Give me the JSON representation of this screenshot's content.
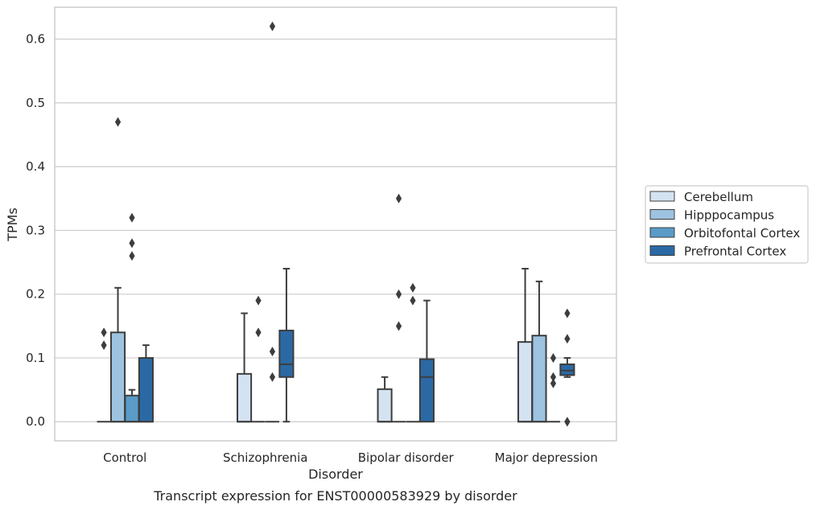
{
  "caption": "Transcript expression for ENST00000583929 by disorder",
  "chart_data": {
    "type": "box",
    "xlabel": "Disorder",
    "ylabel": "TPMs",
    "ylim": [
      -0.03,
      0.65
    ],
    "yticks": [
      0.0,
      0.1,
      0.2,
      0.3,
      0.4,
      0.5,
      0.6
    ],
    "ytick_labels": [
      "0.0",
      "0.1",
      "0.2",
      "0.3",
      "0.4",
      "0.5",
      "0.6"
    ],
    "grid": "horizontal",
    "legend_placement": "right",
    "categories": [
      "Control",
      "Schizophrenia",
      "Bipolar disorder",
      "Major depression"
    ],
    "series": [
      {
        "name": "Cerebellum",
        "color": "#d4e3f2",
        "boxes": [
          {
            "whislo": 0.0,
            "q1": 0.0,
            "med": 0.0,
            "q3": 0.0,
            "whishi": 0.0,
            "fliers": [
              0.14,
              0.12
            ]
          },
          {
            "whislo": 0.0,
            "q1": 0.0,
            "med": 0.0,
            "q3": 0.075,
            "whishi": 0.17,
            "fliers": []
          },
          {
            "whislo": 0.0,
            "q1": 0.0,
            "med": 0.0,
            "q3": 0.051,
            "whishi": 0.07,
            "fliers": []
          },
          {
            "whislo": 0.0,
            "q1": 0.0,
            "med": 0.0,
            "q3": 0.125,
            "whishi": 0.24,
            "fliers": []
          }
        ]
      },
      {
        "name": "Hipppocampus",
        "color": "#9dc3e0",
        "boxes": [
          {
            "whislo": 0.0,
            "q1": 0.0,
            "med": 0.0,
            "q3": 0.14,
            "whishi": 0.21,
            "fliers": [
              0.47
            ]
          },
          {
            "whislo": 0.0,
            "q1": 0.0,
            "med": 0.0,
            "q3": 0.0,
            "whishi": 0.0,
            "fliers": [
              0.19,
              0.14
            ]
          },
          {
            "whislo": 0.0,
            "q1": 0.0,
            "med": 0.0,
            "q3": 0.0,
            "whishi": 0.0,
            "fliers": [
              0.35,
              0.2,
              0.15
            ]
          },
          {
            "whislo": 0.0,
            "q1": 0.0,
            "med": 0.0,
            "q3": 0.135,
            "whishi": 0.22,
            "fliers": []
          }
        ]
      },
      {
        "name": "Orbitofontal Cortex",
        "color": "#5a9bc8",
        "boxes": [
          {
            "whislo": 0.0,
            "q1": 0.0,
            "med": 0.0,
            "q3": 0.041,
            "whishi": 0.05,
            "fliers": [
              0.32,
              0.28,
              0.26
            ]
          },
          {
            "whislo": 0.0,
            "q1": 0.0,
            "med": 0.0,
            "q3": 0.0,
            "whishi": 0.0,
            "fliers": [
              0.62,
              0.11,
              0.07
            ]
          },
          {
            "whislo": 0.0,
            "q1": 0.0,
            "med": 0.0,
            "q3": 0.0,
            "whishi": 0.0,
            "fliers": [
              0.21,
              0.19
            ]
          },
          {
            "whislo": 0.0,
            "q1": 0.0,
            "med": 0.0,
            "q3": 0.0,
            "whishi": 0.0,
            "fliers": [
              0.1,
              0.07,
              0.06
            ]
          }
        ]
      },
      {
        "name": "Prefrontal Cortex",
        "color": "#2b69a5",
        "boxes": [
          {
            "whislo": 0.0,
            "q1": 0.0,
            "med": 0.0,
            "q3": 0.1,
            "whishi": 0.12,
            "fliers": []
          },
          {
            "whislo": 0.0,
            "q1": 0.07,
            "med": 0.09,
            "q3": 0.143,
            "whishi": 0.24,
            "fliers": []
          },
          {
            "whislo": 0.0,
            "q1": 0.0,
            "med": 0.07,
            "q3": 0.098,
            "whishi": 0.19,
            "fliers": []
          },
          {
            "whislo": 0.07,
            "q1": 0.073,
            "med": 0.08,
            "q3": 0.09,
            "whishi": 0.1,
            "fliers": [
              0.17,
              0.13,
              0.0,
              0.0
            ]
          }
        ]
      }
    ]
  }
}
